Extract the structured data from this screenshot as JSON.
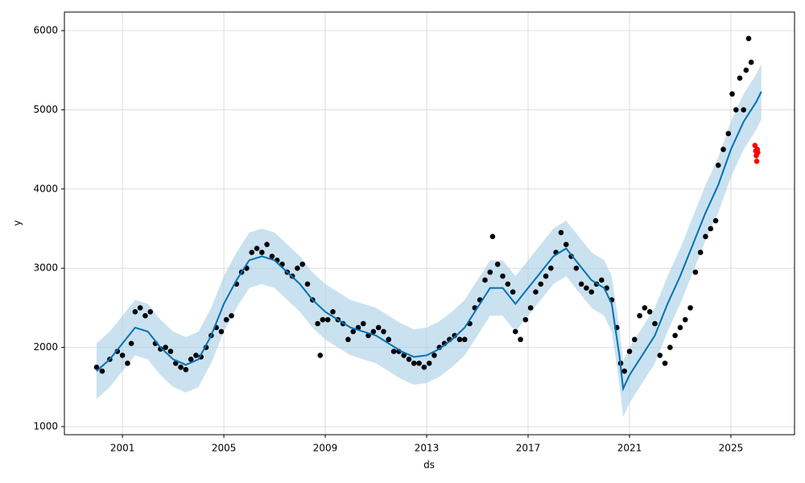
{
  "chart_data": {
    "type": "scatter",
    "xlabel": "ds",
    "ylabel": "y",
    "xlim": [
      1998.71,
      2027.51
    ],
    "ylim": [
      898,
      6234
    ],
    "xticks": [
      2001,
      2005,
      2009,
      2013,
      2017,
      2021,
      2025
    ],
    "yticks": [
      1000,
      2000,
      3000,
      4000,
      5000,
      6000
    ],
    "grid": true,
    "points": {
      "color": "#000000",
      "x": [
        1999.98,
        2000.2,
        2000.5,
        2000.8,
        2001.0,
        2001.2,
        2001.35,
        2001.5,
        2001.7,
        2001.9,
        2002.1,
        2002.3,
        2002.5,
        2002.7,
        2002.9,
        2003.1,
        2003.3,
        2003.5,
        2003.7,
        2003.9,
        2004.1,
        2004.3,
        2004.5,
        2004.7,
        2004.9,
        2005.1,
        2005.3,
        2005.5,
        2005.7,
        2005.9,
        2006.1,
        2006.3,
        2006.5,
        2006.7,
        2006.9,
        2007.1,
        2007.3,
        2007.5,
        2007.7,
        2007.9,
        2008.1,
        2008.3,
        2008.5,
        2008.7,
        2008.8,
        2008.9,
        2009.1,
        2009.3,
        2009.5,
        2009.7,
        2009.9,
        2010.1,
        2010.3,
        2010.5,
        2010.7,
        2010.9,
        2011.1,
        2011.3,
        2011.5,
        2011.7,
        2011.9,
        2012.1,
        2012.3,
        2012.5,
        2012.7,
        2012.9,
        2013.1,
        2013.3,
        2013.5,
        2013.7,
        2013.9,
        2014.1,
        2014.3,
        2014.5,
        2014.7,
        2014.9,
        2015.1,
        2015.3,
        2015.5,
        2015.6,
        2015.8,
        2016.0,
        2016.2,
        2016.4,
        2016.5,
        2016.7,
        2016.9,
        2017.1,
        2017.3,
        2017.5,
        2017.7,
        2017.9,
        2018.1,
        2018.3,
        2018.5,
        2018.7,
        2018.9,
        2019.1,
        2019.3,
        2019.5,
        2019.7,
        2019.9,
        2020.1,
        2020.3,
        2020.5,
        2020.65,
        2020.8,
        2021.0,
        2021.2,
        2021.4,
        2021.6,
        2021.8,
        2022.0,
        2022.2,
        2022.4,
        2022.6,
        2022.8,
        2023.0,
        2023.2,
        2023.4,
        2023.6,
        2023.8,
        2024.0,
        2024.2,
        2024.4,
        2024.5,
        2024.7,
        2024.9,
        2025.05,
        2025.2,
        2025.35,
        2025.5,
        2025.6,
        2025.7,
        2025.8
      ],
      "values": [
        1750,
        1700,
        1850,
        1950,
        1900,
        1800,
        2050,
        2450,
        2500,
        2400,
        2450,
        2050,
        1980,
        2000,
        1950,
        1800,
        1750,
        1720,
        1850,
        1900,
        1880,
        2000,
        2150,
        2250,
        2200,
        2350,
        2400,
        2800,
        2950,
        3000,
        3200,
        3250,
        3200,
        3300,
        3150,
        3100,
        3050,
        2950,
        2900,
        3000,
        3050,
        2800,
        2600,
        2300,
        1900,
        2350,
        2350,
        2450,
        2350,
        2300,
        2100,
        2200,
        2250,
        2300,
        2150,
        2200,
        2250,
        2200,
        2100,
        1950,
        1950,
        1900,
        1850,
        1800,
        1800,
        1750,
        1800,
        1900,
        2000,
        2050,
        2100,
        2150,
        2100,
        2100,
        2300,
        2500,
        2600,
        2850,
        2950,
        3400,
        3050,
        2900,
        2800,
        2700,
        2200,
        2100,
        2350,
        2500,
        2700,
        2800,
        2900,
        3000,
        3200,
        3450,
        3300,
        3150,
        3000,
        2800,
        2750,
        2700,
        2800,
        2850,
        2750,
        2600,
        2250,
        1800,
        1700,
        1950,
        2100,
        2400,
        2500,
        2450,
        2300,
        1900,
        1800,
        2000,
        2150,
        2250,
        2350,
        2500,
        2950,
        3200,
        3400,
        3500,
        3600,
        4300,
        4500,
        4700,
        5200,
        5000,
        5400,
        5000,
        5500,
        5900,
        5600
      ]
    },
    "holdout": {
      "color": "#ff0000",
      "x": [
        2025.95,
        2025.98,
        2026.0,
        2026.02,
        2026.04,
        2026.06
      ],
      "values": [
        4550,
        4480,
        4420,
        4350,
        4500,
        4460
      ]
    },
    "forecast": {
      "color": "#0072b2",
      "band_color": "#a6cde6",
      "x": [
        1999.98,
        2000.5,
        2001.0,
        2001.5,
        2002.0,
        2002.5,
        2003.0,
        2003.5,
        2004.0,
        2004.5,
        2005.0,
        2005.5,
        2006.0,
        2006.5,
        2007.0,
        2007.5,
        2008.0,
        2008.5,
        2009.0,
        2009.5,
        2010.0,
        2010.5,
        2011.0,
        2011.5,
        2012.0,
        2012.5,
        2013.0,
        2013.5,
        2014.0,
        2014.5,
        2015.0,
        2015.5,
        2016.0,
        2016.5,
        2017.0,
        2017.5,
        2018.0,
        2018.5,
        2019.0,
        2019.5,
        2020.0,
        2020.3,
        2020.6,
        2020.75,
        2021.0,
        2021.5,
        2022.0,
        2022.5,
        2023.0,
        2023.5,
        2024.0,
        2024.5,
        2025.0,
        2025.5,
        2026.0,
        2026.2
      ],
      "values": [
        1700,
        1850,
        2050,
        2250,
        2200,
        2000,
        1850,
        1780,
        1850,
        2150,
        2550,
        2850,
        3100,
        3150,
        3100,
        2950,
        2800,
        2600,
        2450,
        2350,
        2250,
        2200,
        2150,
        2050,
        1950,
        1880,
        1900,
        1980,
        2100,
        2250,
        2500,
        2750,
        2750,
        2550,
        2750,
        2950,
        3150,
        3250,
        3050,
        2850,
        2750,
        2550,
        1900,
        1480,
        1650,
        1900,
        2150,
        2550,
        2900,
        3300,
        3700,
        4050,
        4500,
        4850,
        5100,
        5230
      ],
      "lower": [
        1350,
        1500,
        1700,
        1900,
        1850,
        1650,
        1500,
        1430,
        1500,
        1800,
        2200,
        2500,
        2750,
        2800,
        2750,
        2600,
        2450,
        2250,
        2100,
        2000,
        1900,
        1850,
        1800,
        1700,
        1600,
        1530,
        1550,
        1630,
        1750,
        1900,
        2150,
        2400,
        2400,
        2200,
        2400,
        2600,
        2800,
        2900,
        2700,
        2500,
        2400,
        2200,
        1550,
        1120,
        1300,
        1550,
        1800,
        2200,
        2550,
        2950,
        3350,
        3700,
        4150,
        4500,
        4750,
        4880
      ],
      "upper": [
        2050,
        2200,
        2400,
        2600,
        2550,
        2350,
        2200,
        2130,
        2200,
        2500,
        2900,
        3200,
        3450,
        3500,
        3450,
        3300,
        3150,
        2950,
        2800,
        2700,
        2600,
        2550,
        2500,
        2400,
        2300,
        2230,
        2250,
        2330,
        2450,
        2600,
        2850,
        3100,
        3100,
        2900,
        3100,
        3300,
        3500,
        3600,
        3400,
        3200,
        3100,
        2900,
        2250,
        1830,
        2000,
        2250,
        2500,
        2900,
        3250,
        3650,
        4050,
        4400,
        4850,
        5200,
        5450,
        5580
      ]
    }
  }
}
